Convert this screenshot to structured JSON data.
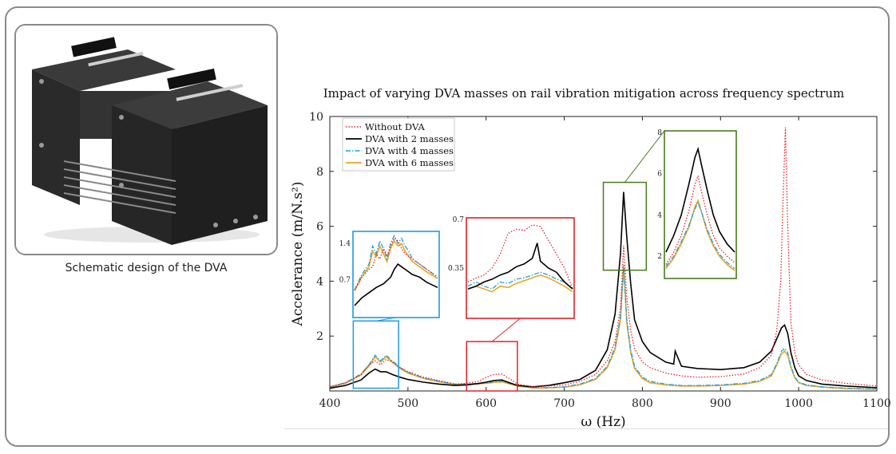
{
  "caption": "Schematic design of the DVA",
  "chart_data": [
    {
      "type": "line",
      "title": "Impact of varying DVA masses on rail vibration mitigation across frequency spectrum",
      "xlabel": "ω (Hz)",
      "ylabel": "Accelerance (m/N.s²)",
      "xlim": [
        400,
        1100
      ],
      "ylim": [
        0,
        10
      ],
      "xticks": [
        400,
        500,
        600,
        700,
        800,
        900,
        1000,
        1100
      ],
      "yticks": [
        2,
        4,
        6,
        8,
        10
      ],
      "legend_position": "top-left",
      "series": [
        {
          "name": "Without DVA",
          "color": "#e8202a",
          "style": "dotted",
          "x": [
            400,
            420,
            440,
            450,
            458,
            465,
            472,
            480,
            490,
            500,
            520,
            540,
            560,
            575,
            590,
            600,
            610,
            620,
            630,
            640,
            660,
            680,
            700,
            720,
            740,
            755,
            765,
            772,
            776,
            780,
            785,
            790,
            800,
            810,
            830,
            850,
            870,
            900,
            930,
            950,
            965,
            972,
            977,
            980,
            983,
            986,
            990,
            995,
            1000,
            1010,
            1030,
            1060,
            1100
          ],
          "y": [
            0.15,
            0.3,
            0.6,
            0.95,
            1.1,
            0.95,
            1.15,
            1.05,
            0.85,
            0.7,
            0.5,
            0.38,
            0.25,
            0.28,
            0.35,
            0.5,
            0.6,
            0.62,
            0.45,
            0.25,
            0.15,
            0.18,
            0.22,
            0.35,
            0.6,
            1.1,
            1.8,
            3.0,
            5.3,
            3.4,
            2.2,
            1.55,
            1.05,
            0.85,
            0.65,
            0.55,
            0.5,
            0.52,
            0.62,
            0.85,
            1.3,
            2.2,
            4.0,
            7.0,
            9.6,
            6.0,
            2.5,
            1.4,
            0.95,
            0.6,
            0.4,
            0.28,
            0.18
          ]
        },
        {
          "name": "DVA with 2 masses",
          "color": "#000000",
          "style": "solid",
          "x": [
            400,
            420,
            440,
            450,
            458,
            465,
            472,
            480,
            490,
            500,
            520,
            540,
            560,
            575,
            590,
            600,
            610,
            620,
            630,
            640,
            660,
            680,
            700,
            720,
            740,
            755,
            765,
            772,
            776,
            780,
            785,
            790,
            800,
            810,
            830,
            840,
            842,
            850,
            870,
            900,
            930,
            950,
            965,
            972,
            978,
            982,
            986,
            990,
            995,
            1000,
            1010,
            1030,
            1060,
            1100
          ],
          "y": [
            0.1,
            0.2,
            0.4,
            0.65,
            0.8,
            0.7,
            0.7,
            0.6,
            0.5,
            0.42,
            0.32,
            0.25,
            0.2,
            0.22,
            0.27,
            0.32,
            0.38,
            0.4,
            0.3,
            0.2,
            0.15,
            0.2,
            0.3,
            0.42,
            0.75,
            1.5,
            2.8,
            5.0,
            7.25,
            5.6,
            3.9,
            2.6,
            1.8,
            1.4,
            1.05,
            0.98,
            1.45,
            0.9,
            0.82,
            0.78,
            0.85,
            1.05,
            1.45,
            1.9,
            2.3,
            2.4,
            2.1,
            1.4,
            0.85,
            0.55,
            0.38,
            0.25,
            0.18,
            0.12
          ]
        },
        {
          "name": "DVA with 4 masses",
          "color": "#1fa0e0",
          "style": "dashdot",
          "x": [
            400,
            420,
            440,
            450,
            458,
            465,
            472,
            480,
            490,
            500,
            520,
            540,
            560,
            575,
            590,
            600,
            610,
            620,
            630,
            640,
            660,
            680,
            700,
            720,
            740,
            755,
            765,
            772,
            776,
            780,
            785,
            790,
            800,
            810,
            830,
            850,
            870,
            900,
            930,
            950,
            965,
            972,
            978,
            982,
            986,
            990,
            995,
            1000,
            1010,
            1030,
            1060,
            1100
          ],
          "y": [
            0.15,
            0.3,
            0.62,
            0.95,
            1.3,
            1.1,
            1.3,
            1.1,
            0.85,
            0.68,
            0.48,
            0.35,
            0.25,
            0.25,
            0.28,
            0.3,
            0.33,
            0.35,
            0.28,
            0.2,
            0.12,
            0.12,
            0.15,
            0.25,
            0.45,
            0.9,
            1.6,
            2.7,
            4.5,
            2.6,
            1.5,
            0.9,
            0.5,
            0.35,
            0.25,
            0.2,
            0.2,
            0.22,
            0.28,
            0.38,
            0.6,
            1.0,
            1.45,
            1.55,
            1.4,
            0.9,
            0.5,
            0.32,
            0.22,
            0.15,
            0.1,
            0.07
          ]
        },
        {
          "name": "DVA with 6 masses",
          "color": "#e8a820",
          "style": "solid",
          "x": [
            400,
            420,
            440,
            450,
            458,
            465,
            472,
            480,
            490,
            500,
            520,
            540,
            560,
            575,
            590,
            600,
            610,
            620,
            630,
            640,
            660,
            680,
            700,
            720,
            740,
            755,
            765,
            772,
            776,
            780,
            785,
            790,
            800,
            810,
            830,
            850,
            870,
            900,
            930,
            950,
            965,
            972,
            978,
            982,
            986,
            990,
            995,
            1000,
            1010,
            1030,
            1060,
            1100
          ],
          "y": [
            0.14,
            0.28,
            0.58,
            0.9,
            1.25,
            1.05,
            1.25,
            1.05,
            0.82,
            0.65,
            0.46,
            0.33,
            0.24,
            0.24,
            0.26,
            0.28,
            0.31,
            0.33,
            0.26,
            0.18,
            0.11,
            0.11,
            0.14,
            0.22,
            0.42,
            0.85,
            1.5,
            2.6,
            4.6,
            2.5,
            1.4,
            0.82,
            0.45,
            0.3,
            0.22,
            0.18,
            0.18,
            0.2,
            0.25,
            0.35,
            0.55,
            0.95,
            1.35,
            1.45,
            1.3,
            0.85,
            0.48,
            0.3,
            0.2,
            0.14,
            0.09,
            0.06
          ]
        }
      ]
    },
    {
      "type": "line",
      "title": "",
      "xlim": [
        430,
        545
      ],
      "ylim": [
        0,
        1.6
      ],
      "yticks_labels": [
        "0.7",
        "1.4"
      ],
      "ytick_values": [
        0.7,
        1.4
      ],
      "inset": "blue",
      "series": [
        {
          "name": "Without DVA",
          "x": [
            430,
            440,
            450,
            455,
            460,
            465,
            470,
            475,
            480,
            485,
            490,
            495,
            500,
            510,
            520,
            530,
            545
          ],
          "y": [
            0.5,
            0.75,
            0.9,
            0.95,
            1.2,
            1.1,
            1.3,
            1.15,
            1.35,
            1.5,
            1.45,
            1.3,
            1.2,
            1.1,
            1.0,
            0.9,
            0.75
          ]
        },
        {
          "name": "DVA with 2 masses",
          "x": [
            430,
            440,
            450,
            460,
            470,
            480,
            485,
            490,
            495,
            500,
            510,
            520,
            530,
            545
          ],
          "y": [
            0.2,
            0.35,
            0.45,
            0.55,
            0.62,
            0.75,
            0.9,
            1.0,
            0.95,
            0.9,
            0.8,
            0.75,
            0.65,
            0.55
          ]
        },
        {
          "name": "DVA with 4 masses",
          "x": [
            430,
            440,
            450,
            455,
            460,
            465,
            470,
            475,
            480,
            485,
            490,
            495,
            500,
            505,
            510,
            520,
            530,
            545
          ],
          "y": [
            0.5,
            0.8,
            1.0,
            1.35,
            1.2,
            1.45,
            1.3,
            1.1,
            1.4,
            1.55,
            1.4,
            1.5,
            1.35,
            1.25,
            1.1,
            1.0,
            0.9,
            0.75
          ]
        },
        {
          "name": "DVA with 6 masses",
          "x": [
            430,
            440,
            450,
            455,
            460,
            465,
            470,
            475,
            480,
            485,
            490,
            495,
            500,
            505,
            510,
            520,
            530,
            545
          ],
          "y": [
            0.48,
            0.75,
            0.95,
            1.25,
            1.15,
            1.35,
            1.2,
            1.05,
            1.3,
            1.45,
            1.35,
            1.4,
            1.25,
            1.15,
            1.05,
            0.95,
            0.85,
            0.72
          ]
        }
      ]
    },
    {
      "type": "line",
      "title": "",
      "xlim": [
        575,
        640
      ],
      "ylim": [
        0,
        0.7
      ],
      "yticks_labels": [
        "0.35",
        "0.7"
      ],
      "ytick_values": [
        0.35,
        0.7
      ],
      "inset": "red",
      "series": [
        {
          "name": "Without DVA",
          "x": [
            575,
            580,
            585,
            590,
            595,
            600,
            605,
            610,
            615,
            620,
            625,
            630,
            635,
            640
          ],
          "y": [
            0.25,
            0.28,
            0.3,
            0.35,
            0.45,
            0.6,
            0.63,
            0.62,
            0.66,
            0.65,
            0.55,
            0.45,
            0.35,
            0.2
          ]
        },
        {
          "name": "DVA with 2 masses",
          "x": [
            575,
            580,
            585,
            590,
            595,
            600,
            605,
            610,
            615,
            618,
            620,
            625,
            630,
            635,
            640
          ],
          "y": [
            0.2,
            0.22,
            0.25,
            0.27,
            0.3,
            0.32,
            0.36,
            0.38,
            0.42,
            0.53,
            0.4,
            0.35,
            0.32,
            0.25,
            0.2
          ]
        },
        {
          "name": "DVA with 4 masses",
          "x": [
            575,
            580,
            585,
            590,
            595,
            600,
            605,
            610,
            615,
            620,
            625,
            630,
            635,
            640
          ],
          "y": [
            0.22,
            0.25,
            0.22,
            0.2,
            0.25,
            0.24,
            0.27,
            0.28,
            0.3,
            0.32,
            0.3,
            0.27,
            0.25,
            0.2
          ]
        },
        {
          "name": "DVA with 6 masses",
          "x": [
            575,
            580,
            585,
            590,
            595,
            600,
            605,
            610,
            615,
            620,
            625,
            630,
            635,
            640
          ],
          "y": [
            0.2,
            0.22,
            0.2,
            0.18,
            0.22,
            0.21,
            0.24,
            0.26,
            0.28,
            0.3,
            0.28,
            0.25,
            0.22,
            0.18
          ]
        }
      ]
    },
    {
      "type": "line",
      "title": "",
      "xlim": [
        755,
        800
      ],
      "ylim": [
        1,
        8
      ],
      "yticks_labels": [
        "2",
        "4",
        "6",
        "8"
      ],
      "ytick_values": [
        2,
        4,
        6,
        8
      ],
      "inset": "green",
      "series": [
        {
          "name": "Without DVA",
          "x": [
            755,
            760,
            765,
            770,
            774,
            776,
            778,
            782,
            786,
            790,
            795,
            800
          ],
          "y": [
            1.6,
            2.2,
            3.0,
            4.2,
            5.5,
            5.9,
            5.2,
            4.0,
            3.0,
            2.4,
            2.0,
            1.7
          ]
        },
        {
          "name": "DVA with 2 masses",
          "x": [
            755,
            760,
            765,
            770,
            774,
            776,
            778,
            782,
            786,
            790,
            795,
            800
          ],
          "y": [
            2.2,
            3.0,
            4.0,
            5.5,
            6.8,
            7.2,
            6.5,
            5.2,
            4.0,
            3.2,
            2.6,
            2.2
          ]
        },
        {
          "name": "DVA with 4 masses",
          "x": [
            755,
            760,
            765,
            770,
            774,
            776,
            778,
            782,
            786,
            790,
            795,
            800
          ],
          "y": [
            1.5,
            2.0,
            2.7,
            3.5,
            4.3,
            4.6,
            4.2,
            3.3,
            2.6,
            2.1,
            1.7,
            1.4
          ]
        },
        {
          "name": "DVA with 6 masses",
          "x": [
            755,
            760,
            765,
            770,
            774,
            776,
            778,
            782,
            786,
            790,
            795,
            800
          ],
          "y": [
            1.4,
            1.9,
            2.6,
            3.4,
            4.4,
            4.7,
            4.2,
            3.2,
            2.5,
            2.0,
            1.6,
            1.3
          ]
        }
      ]
    }
  ]
}
